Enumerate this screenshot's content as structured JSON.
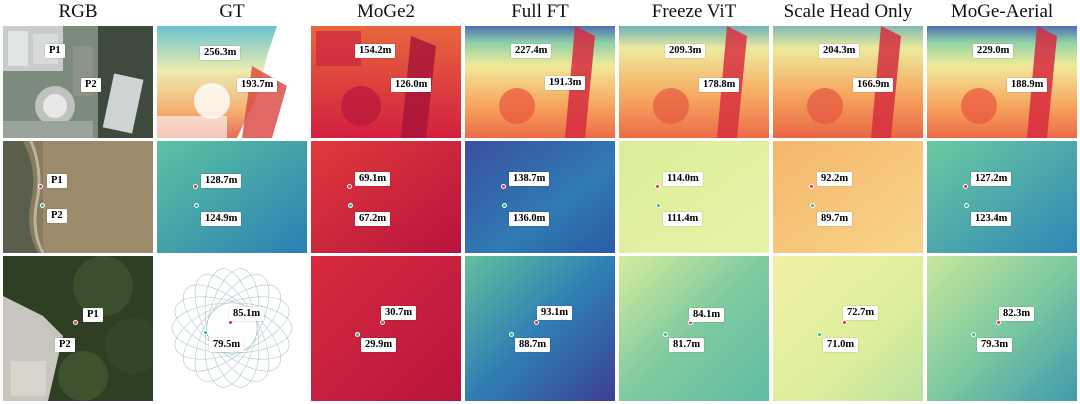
{
  "columns": [
    "RGB",
    "GT",
    "MoGe2",
    "Full FT",
    "Freeze ViT",
    "Scale Head Only",
    "MoGe-Aerial"
  ],
  "point_labels": {
    "p1": "P1",
    "p2": "P2"
  },
  "rows": [
    {
      "values": {
        "gt": {
          "p1": "256.3m",
          "p2": "193.7m"
        },
        "moge2": {
          "p1": "154.2m",
          "p2": "126.0m"
        },
        "full_ft": {
          "p1": "227.4m",
          "p2": "191.3m"
        },
        "freeze_vit": {
          "p1": "209.3m",
          "p2": "178.8m"
        },
        "scale_head": {
          "p1": "204.3m",
          "p2": "166.9m"
        },
        "moge_aerial": {
          "p1": "229.0m",
          "p2": "188.9m"
        }
      }
    },
    {
      "values": {
        "gt": {
          "p1": "128.7m",
          "p2": "124.9m"
        },
        "moge2": {
          "p1": "69.1m",
          "p2": "67.2m"
        },
        "full_ft": {
          "p1": "138.7m",
          "p2": "136.0m"
        },
        "freeze_vit": {
          "p1": "114.0m",
          "p2": "111.4m"
        },
        "scale_head": {
          "p1": "92.2m",
          "p2": "89.7m"
        },
        "moge_aerial": {
          "p1": "127.2m",
          "p2": "123.4m"
        }
      }
    },
    {
      "values": {
        "gt": {
          "p1": "85.1m",
          "p2": "79.5m"
        },
        "moge2": {
          "p1": "30.7m",
          "p2": "29.9m"
        },
        "full_ft": {
          "p1": "93.1m",
          "p2": "88.7m"
        },
        "freeze_vit": {
          "p1": "84.1m",
          "p2": "81.7m"
        },
        "scale_head": {
          "p1": "72.7m",
          "p2": "71.0m"
        },
        "moge_aerial": {
          "p1": "82.3m",
          "p2": "79.3m"
        }
      }
    }
  ],
  "colors": {
    "p1_marker": "#e0305a",
    "p2_marker": "#2fbf8f"
  }
}
